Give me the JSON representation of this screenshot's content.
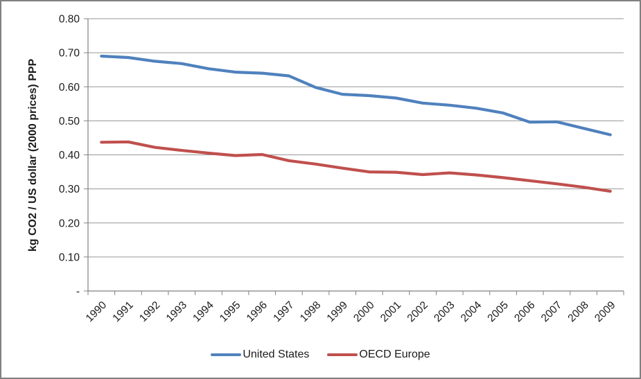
{
  "window": {
    "background": "#ffffff",
    "border_color": "#808080"
  },
  "chart_data": {
    "type": "line",
    "title": "",
    "xlabel": "",
    "ylabel": "kg CO2 / US dollar (2000 prices) PPP",
    "ylim": [
      0,
      0.8
    ],
    "grid": "horizontal",
    "legend_position": "bottom",
    "style": {
      "grid_color": "#969696",
      "axis_color": "#808080",
      "text_color": "#1a1a1a"
    },
    "y_ticks": [
      {
        "value": 0.8,
        "label": "0.80"
      },
      {
        "value": 0.7,
        "label": "0.70"
      },
      {
        "value": 0.6,
        "label": "0.60"
      },
      {
        "value": 0.5,
        "label": "0.50"
      },
      {
        "value": 0.4,
        "label": "0.40"
      },
      {
        "value": 0.3,
        "label": "0.30"
      },
      {
        "value": 0.2,
        "label": "0.20"
      },
      {
        "value": 0.1,
        "label": "0.10"
      },
      {
        "value": 0,
        "label": "-"
      }
    ],
    "categories": [
      "1990",
      "1991",
      "1992",
      "1993",
      "1994",
      "1995",
      "1996",
      "1997",
      "1998",
      "1999",
      "2000",
      "2001",
      "2002",
      "2003",
      "2004",
      "2005",
      "2006",
      "2007",
      "2008",
      "2009"
    ],
    "series": [
      {
        "name": "United States",
        "color": "#4F81BD",
        "values": [
          0.69,
          0.686,
          0.675,
          0.668,
          0.653,
          0.643,
          0.64,
          0.632,
          0.598,
          0.578,
          0.574,
          0.567,
          0.552,
          0.546,
          0.537,
          0.523,
          0.496,
          0.497,
          0.478,
          0.459
        ]
      },
      {
        "name": "OECD Europe",
        "color": "#C0504D",
        "values": [
          0.437,
          0.438,
          0.422,
          0.413,
          0.405,
          0.398,
          0.401,
          0.383,
          0.373,
          0.361,
          0.35,
          0.349,
          0.342,
          0.347,
          0.341,
          0.333,
          0.324,
          0.315,
          0.305,
          0.293
        ]
      }
    ]
  }
}
